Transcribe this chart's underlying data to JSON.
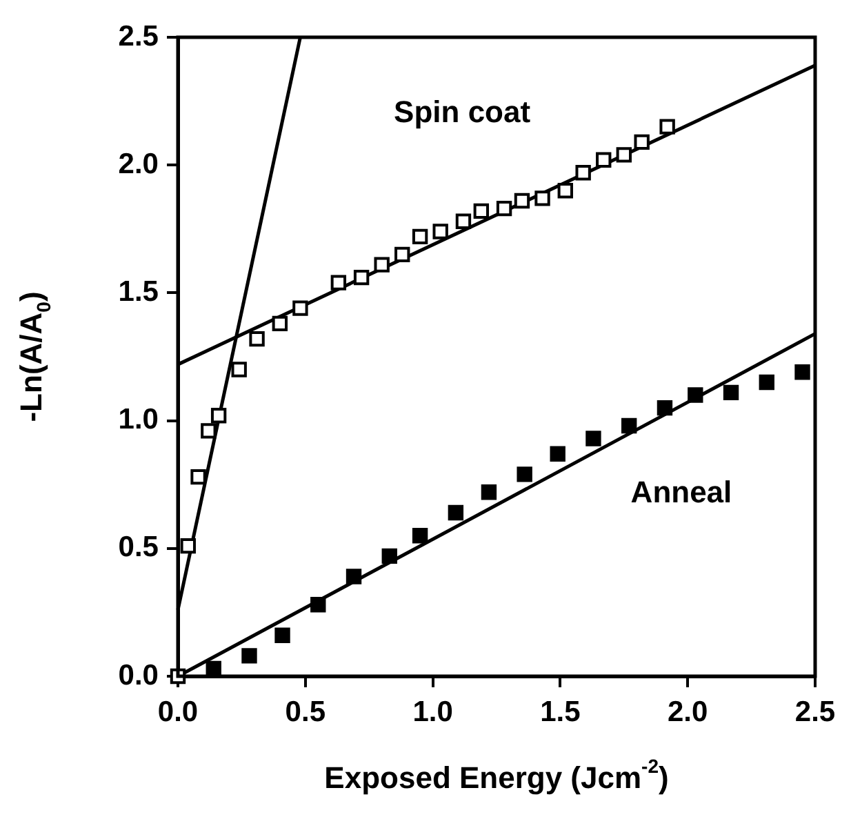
{
  "chart_data": {
    "type": "scatter",
    "xlabel": "Exposed Energy (Jcm$^{-2}$)",
    "ylabel": "-Ln(A/A$_{0}$)",
    "xlim": [
      0,
      2.5
    ],
    "ylim": [
      0,
      2.5
    ],
    "xticks": [
      {
        "value": 0,
        "label": "0.0"
      },
      {
        "value": 0.5,
        "label": "0.5"
      },
      {
        "value": 1,
        "label": "1.0"
      },
      {
        "value": 1.5,
        "label": "1.5"
      },
      {
        "value": 2,
        "label": "2.0"
      },
      {
        "value": 2.5,
        "label": "2.5"
      }
    ],
    "yticks": [
      {
        "value": 0,
        "label": "0.0"
      },
      {
        "value": 0.5,
        "label": "0.5"
      },
      {
        "value": 1,
        "label": "1.0"
      },
      {
        "value": 1.5,
        "label": "1.5"
      },
      {
        "value": 2,
        "label": "2.0"
      },
      {
        "value": 2.5,
        "label": "2.5"
      }
    ],
    "grid": false,
    "legend": false,
    "marker": "square",
    "annotations": [
      "Spin coat",
      "Anneal"
    ],
    "series": [
      {
        "color": "#ffffff",
        "x": [
          0,
          0.04,
          0.08,
          0.12,
          0.16,
          0.24,
          0.31,
          0.4,
          0.48,
          0.63,
          0.72,
          0.8,
          0.88,
          0.95,
          1.03,
          1.12,
          1.19,
          1.28,
          1.35,
          1.43,
          1.52,
          1.59,
          1.67,
          1.75,
          1.82,
          1.92
        ],
        "values": [
          0,
          0.51,
          0.78,
          0.96,
          1.02,
          1.2,
          1.32,
          1.38,
          1.44,
          1.54,
          1.56,
          1.61,
          1.65,
          1.72,
          1.74,
          1.78,
          1.82,
          1.83,
          1.86,
          1.87,
          1.9,
          1.97,
          2.02,
          2.04,
          2.09,
          2.15
        ]
      },
      {
        "color": "#000000",
        "x": [
          0.14,
          0.28,
          0.41,
          0.55,
          0.69,
          0.83,
          0.95,
          1.09,
          1.22,
          1.36,
          1.49,
          1.63,
          1.77,
          1.91,
          2.03,
          2.17,
          2.31,
          2.45
        ],
        "values": [
          0.03,
          0.08,
          0.16,
          0.28,
          0.39,
          0.47,
          0.55,
          0.64,
          0.72,
          0.79,
          0.87,
          0.93,
          0.98,
          1.05,
          1.1,
          1.11,
          1.15,
          1.19
        ]
      },
      {
        "type": "line",
        "color": "#000000",
        "marker": "none",
        "x": [
          0,
          2.5
        ],
        "values": [
          1.22,
          2.39
        ]
      },
      {
        "type": "line",
        "color": "#000000",
        "marker": "none",
        "x": [
          0,
          0.48
        ],
        "values": [
          0.26,
          2.5
        ]
      },
      {
        "type": "line",
        "color": "#000000",
        "marker": "none",
        "x": [
          0,
          2.5
        ],
        "values": [
          0,
          1.34
        ]
      }
    ]
  }
}
